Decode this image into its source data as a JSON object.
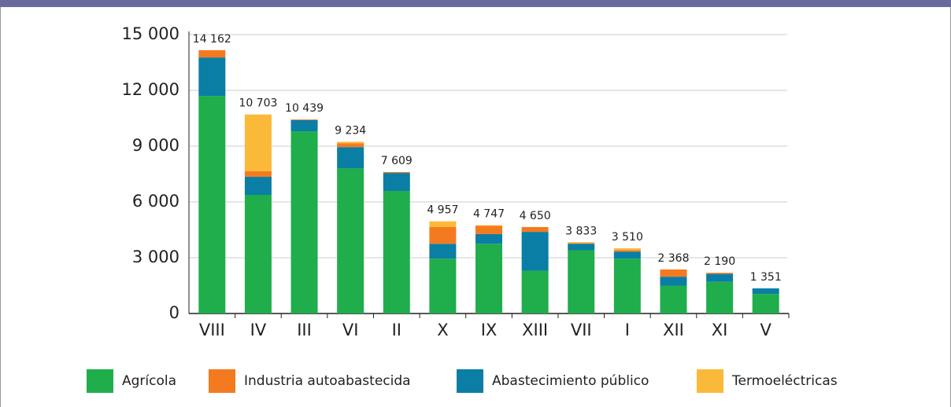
{
  "chart_data": {
    "type": "stacked_bar",
    "categories": [
      "VIII",
      "IV",
      "III",
      "VI",
      "II",
      "X",
      "IX",
      "XIII",
      "VII",
      "I",
      "XII",
      "XI",
      "V"
    ],
    "series": [
      {
        "name": "Agrícola",
        "color": "#1fae4b",
        "values": [
          11700,
          6380,
          9800,
          7800,
          6590,
          2950,
          3750,
          2300,
          3400,
          2950,
          1500,
          1700,
          1050
        ]
      },
      {
        "name": "Industria autoabastecida",
        "color": "#f47a20",
        "values": [
          392,
          300,
          39,
          200,
          49,
          900,
          440,
          260,
          40,
          80,
          388,
          60,
          0
        ]
      },
      {
        "name": "Abastecimiento público",
        "color": "#0a7ea4",
        "values": [
          2070,
          970,
          600,
          1150,
          970,
          800,
          520,
          2090,
          350,
          380,
          480,
          430,
          301
        ]
      },
      {
        "name": "Termoeléctricas",
        "color": "#fbb93a",
        "values": [
          0,
          3053,
          0,
          84,
          0,
          307,
          37,
          0,
          43,
          100,
          0,
          0,
          0
        ]
      }
    ],
    "totals": [
      14162,
      10703,
      10439,
      9234,
      7609,
      4957,
      4747,
      4650,
      3833,
      3510,
      2368,
      2190,
      1351
    ],
    "total_labels": [
      "14 162",
      "10 703",
      "10 439",
      "9 234",
      "7 609",
      "4 957",
      "4 747",
      "4 650",
      "3 833",
      "3 510",
      "2 368",
      "2 190",
      "1 351"
    ],
    "ylim": [
      0,
      15000
    ],
    "yticks": [
      0,
      {
        "value": 3000,
        "label": "3 000"
      },
      {
        "value": 6000,
        "label": "6 000"
      },
      {
        "value": 9000,
        "label": "9 000"
      },
      {
        "value": 12000,
        "label": "12 000"
      },
      {
        "value": 15000,
        "label": "15 000"
      }
    ],
    "grid": true
  }
}
